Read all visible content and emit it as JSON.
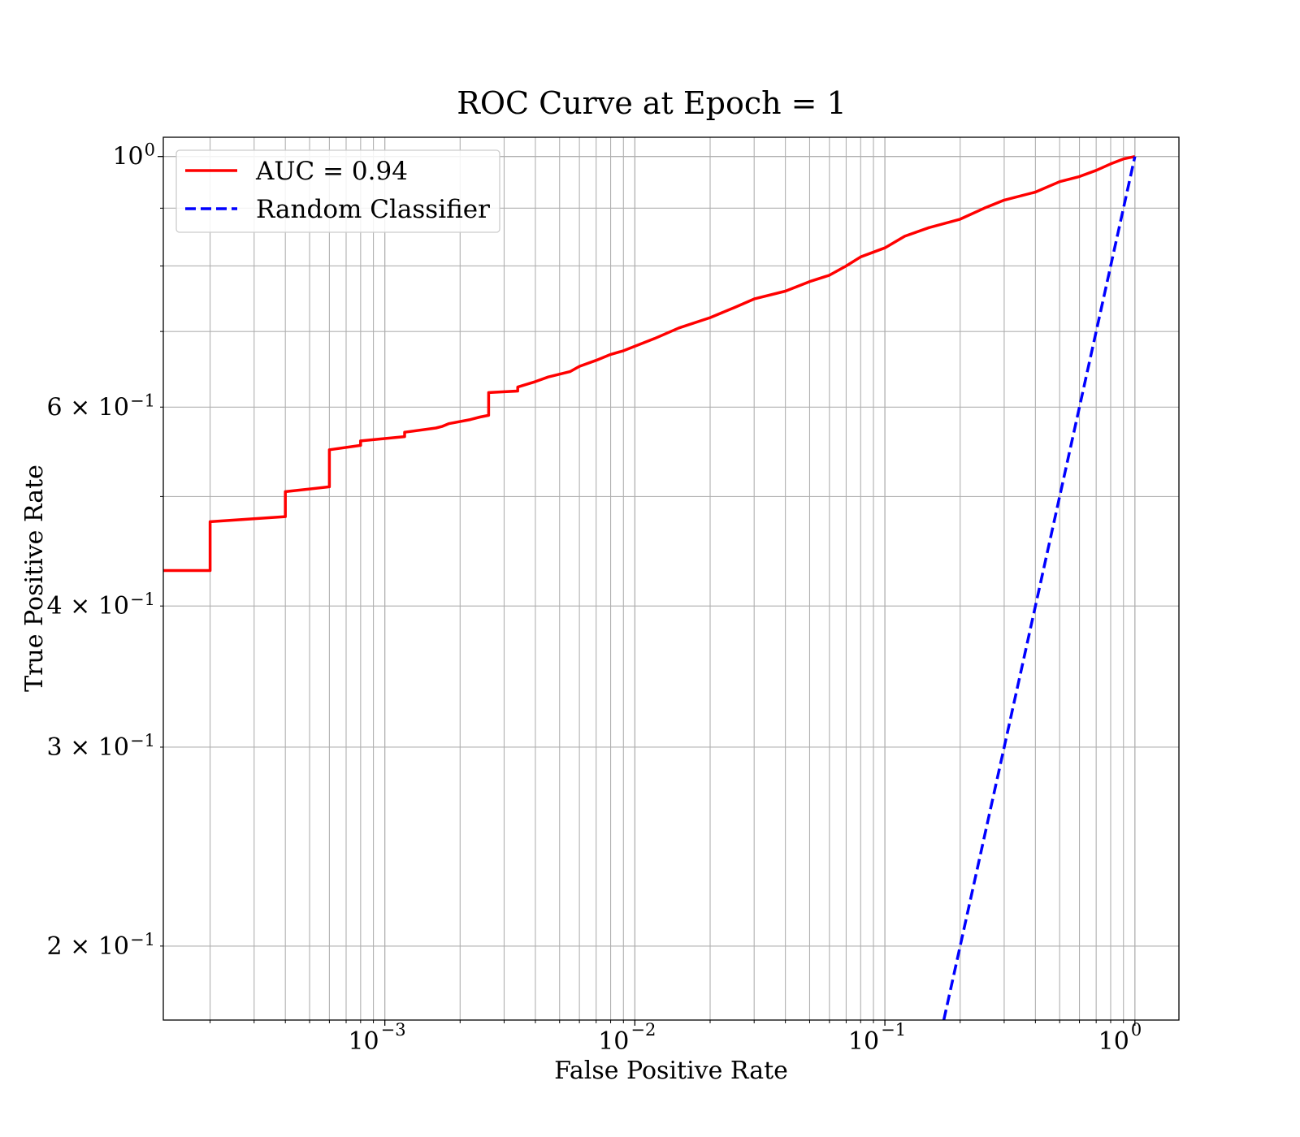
{
  "chart_data": {
    "type": "line",
    "title": "ROC Curve at Epoch = 1",
    "xlabel": "False Positive Rate",
    "ylabel": "True Positive Rate",
    "xscale": "log",
    "yscale": "log",
    "xlim": [
      0.00013,
      1.5
    ],
    "ylim": [
      0.172,
      1.04
    ],
    "grid": true,
    "grid_minor": true,
    "legend_position": "upper-left",
    "x_ticks": [
      {
        "value": 0.001,
        "base": "10",
        "exp": "−3"
      },
      {
        "value": 0.01,
        "base": "10",
        "exp": "−2"
      },
      {
        "value": 0.1,
        "base": "10",
        "exp": "−1"
      },
      {
        "value": 1,
        "base": "10",
        "exp": "0"
      }
    ],
    "y_ticks": [
      {
        "value": 1.0,
        "base": "10",
        "exp": "0"
      },
      {
        "value": 0.6,
        "base": "6 × 10",
        "exp": "−1"
      },
      {
        "value": 0.4,
        "base": "4 × 10",
        "exp": "−1"
      },
      {
        "value": 0.3,
        "base": "3 × 10",
        "exp": "−1"
      },
      {
        "value": 0.2,
        "base": "2 × 10",
        "exp": "−1"
      }
    ],
    "series": [
      {
        "name": "AUC = 0.94",
        "color": "#ff0000",
        "style": "solid",
        "x": [
          0.00013,
          0.0002,
          0.0002,
          0.0004,
          0.0004,
          0.0006,
          0.0006,
          0.0008,
          0.0008,
          0.0012,
          0.0012,
          0.0016,
          0.0017,
          0.0018,
          0.0022,
          0.0024,
          0.0026,
          0.0026,
          0.0034,
          0.0034,
          0.004,
          0.0045,
          0.0055,
          0.006,
          0.007,
          0.008,
          0.009,
          0.012,
          0.015,
          0.02,
          0.025,
          0.03,
          0.04,
          0.05,
          0.06,
          0.07,
          0.08,
          0.1,
          0.12,
          0.15,
          0.2,
          0.25,
          0.3,
          0.4,
          0.5,
          0.6,
          0.7,
          0.8,
          0.9,
          1.0
        ],
        "y": [
          0.43,
          0.43,
          0.475,
          0.48,
          0.505,
          0.51,
          0.55,
          0.555,
          0.56,
          0.565,
          0.57,
          0.575,
          0.577,
          0.58,
          0.585,
          0.588,
          0.59,
          0.618,
          0.62,
          0.625,
          0.632,
          0.638,
          0.645,
          0.652,
          0.66,
          0.668,
          0.673,
          0.69,
          0.705,
          0.72,
          0.735,
          0.748,
          0.76,
          0.775,
          0.785,
          0.8,
          0.815,
          0.83,
          0.85,
          0.865,
          0.88,
          0.9,
          0.915,
          0.93,
          0.95,
          0.96,
          0.972,
          0.985,
          0.995,
          1.0
        ]
      },
      {
        "name": "Random Classifier",
        "color": "#0000ff",
        "style": "dashed",
        "x": [
          0.172,
          1.0
        ],
        "y": [
          0.172,
          1.0
        ]
      }
    ]
  }
}
